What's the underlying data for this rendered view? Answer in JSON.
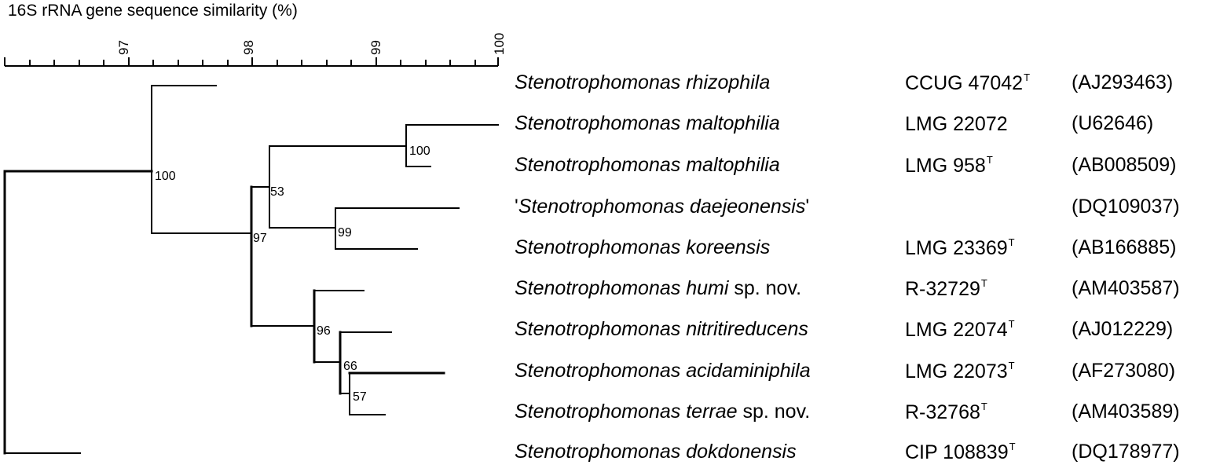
{
  "axis": {
    "title": "16S rRNA gene sequence similarity (%)",
    "tick_labels": [
      "97",
      "98",
      "99",
      "100"
    ]
  },
  "taxa": [
    {
      "genus": "Stenotrophomonas",
      "epithet": "rhizophila",
      "quote_open": "",
      "quote_close": "",
      "suffix": "",
      "strain": "CCUG 47042",
      "type_mark": "T",
      "accession": "(AJ293463)"
    },
    {
      "genus": "Stenotrophomonas",
      "epithet": "maltophilia",
      "quote_open": "",
      "quote_close": "",
      "suffix": "",
      "strain": "LMG 22072",
      "type_mark": "",
      "accession": "(U62646)"
    },
    {
      "genus": "Stenotrophomonas",
      "epithet": "maltophilia",
      "quote_open": "",
      "quote_close": "",
      "suffix": "",
      "strain": "LMG 958",
      "type_mark": "T",
      "accession": "(AB008509)"
    },
    {
      "genus": "Stenotrophomonas",
      "epithet": "daejeonensis",
      "quote_open": "'",
      "quote_close": "'",
      "suffix": "",
      "strain": "",
      "type_mark": "",
      "accession": "(DQ109037)"
    },
    {
      "genus": "Stenotrophomonas",
      "epithet": "koreensis",
      "quote_open": "",
      "quote_close": "",
      "suffix": "",
      "strain": "LMG 23369",
      "type_mark": "T",
      "accession": "(AB166885)"
    },
    {
      "genus": "Stenotrophomonas",
      "epithet": "humi",
      "quote_open": "",
      "quote_close": "",
      "suffix": " sp. nov.",
      "strain": "R-32729",
      "type_mark": "T",
      "accession": "(AM403587)"
    },
    {
      "genus": "Stenotrophomonas",
      "epithet": "nitritireducens",
      "quote_open": "",
      "quote_close": "",
      "suffix": "",
      "strain": "LMG 22074",
      "type_mark": "T",
      "accession": "(AJ012229)"
    },
    {
      "genus": "Stenotrophomonas",
      "epithet": "acidaminiphila",
      "quote_open": "",
      "quote_close": "",
      "suffix": "",
      "strain": "LMG 22073",
      "type_mark": "T",
      "accession": "(AF273080)"
    },
    {
      "genus": "Stenotrophomonas",
      "epithet": "terrae",
      "quote_open": "",
      "quote_close": "",
      "suffix": " sp. nov.",
      "strain": "R-32768",
      "type_mark": "T",
      "accession": "(AM403589)"
    },
    {
      "genus": "Stenotrophomonas",
      "epithet": "dokdonensis",
      "quote_open": "",
      "quote_close": "",
      "suffix": "",
      "strain": "CIP 108839",
      "type_mark": "T",
      "accession": "(DQ178977)"
    }
  ],
  "bootstrap_values": [
    "100",
    "53",
    "97",
    "100",
    "99",
    "96",
    "66",
    "57"
  ]
}
